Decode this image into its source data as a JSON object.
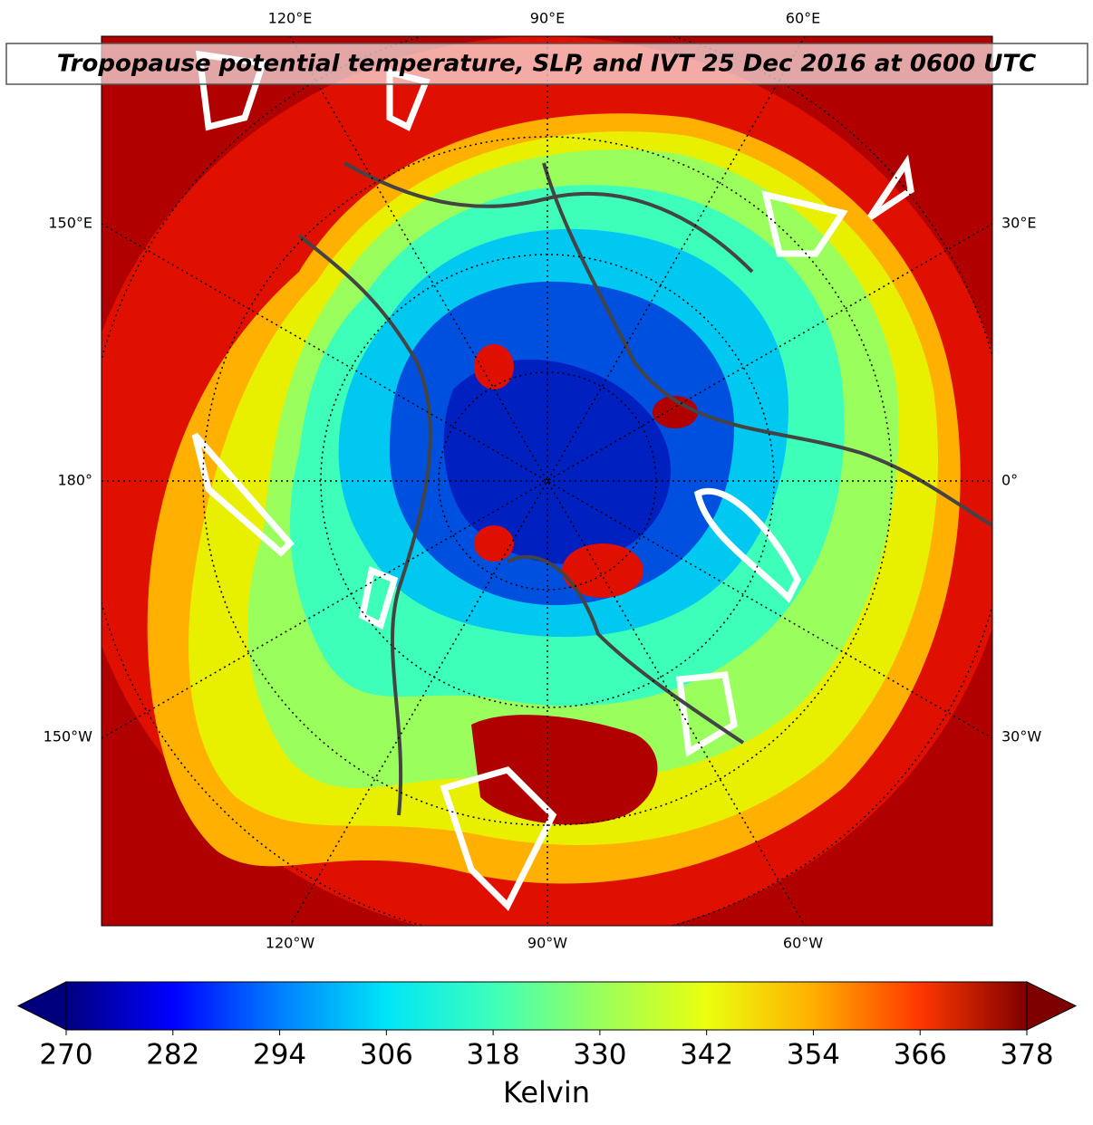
{
  "map": {
    "title": "Tropopause potential temperature, SLP, and IVT 25 Dec 2016 at 0600 UTC",
    "lon_labels": {
      "top": [
        "120°E",
        "90°E",
        "60°E"
      ],
      "left": [
        "150°E",
        "180°",
        "150°W"
      ],
      "right": [
        "30°E",
        "0°",
        "30°W"
      ],
      "bottom": [
        "120°W",
        "90°W",
        "60°W"
      ]
    },
    "colorbar": {
      "label": "Kelvin",
      "lim": [
        270,
        378
      ],
      "ticks": [
        270,
        282,
        294,
        306,
        318,
        330,
        342,
        354,
        366,
        378
      ],
      "colors": [
        "#00007f",
        "#0000ff",
        "#007fff",
        "#00e5f7",
        "#3dffba",
        "#9aff5d",
        "#eaff0e",
        "#ffae00",
        "#ff3700",
        "#7f0000"
      ]
    }
  }
}
